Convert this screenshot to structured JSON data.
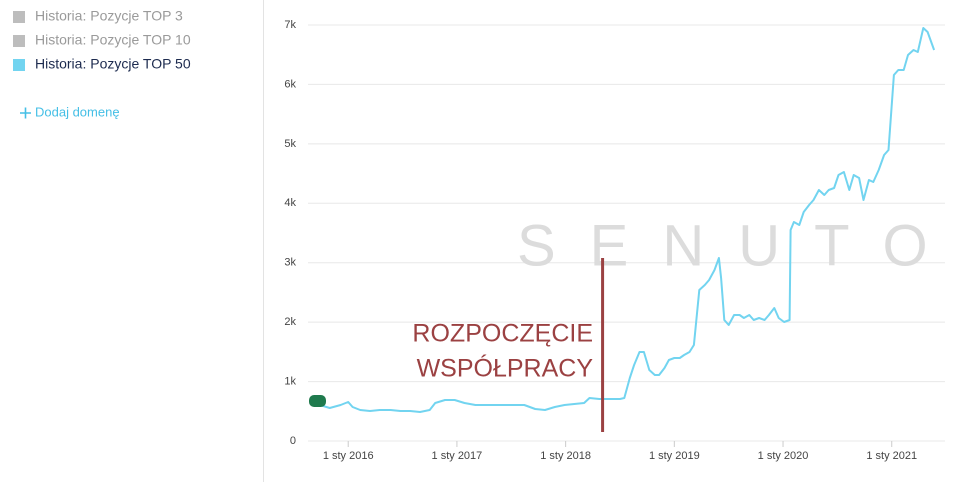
{
  "sidebar": {
    "legend": [
      {
        "name": "Historia: Pozycje TOP 3",
        "color": "#bdbdbd"
      },
      {
        "name": "Historia: Pozycje TOP 10",
        "color": "#bdbdbd"
      }
    ],
    "add_domain": "Dodaj domenę"
  },
  "chart_data": {
    "type": "line",
    "watermark": "SENUTO",
    "annotation": {
      "lines": [
        "ROZPOCZĘCIE",
        "WSPÓŁPRACY"
      ],
      "x": 2018.34,
      "color": "#9b4142"
    },
    "xlim": [
      2015.63,
      2021.49
    ],
    "xticks": [
      {
        "value": 2016,
        "label": "1 sty 2016"
      },
      {
        "value": 2017,
        "label": "1 sty 2017"
      },
      {
        "value": 2018,
        "label": "1 sty 2018"
      },
      {
        "value": 2019,
        "label": "1 sty 2019"
      },
      {
        "value": 2020,
        "label": "1 sty 2020"
      },
      {
        "value": 2021,
        "label": "1 sty 2021"
      }
    ],
    "ylim": [
      0,
      7000
    ],
    "yticks": [
      0,
      {
        "value": 1000,
        "label": "1k"
      },
      {
        "value": 2000,
        "label": "2k"
      },
      {
        "value": 3000,
        "label": "3k"
      },
      {
        "value": 4000,
        "label": "4k"
      },
      {
        "value": 5000,
        "label": "5k"
      },
      {
        "value": 6000,
        "label": "6k"
      },
      {
        "value": 7000,
        "label": "7k"
      }
    ],
    "grid": true,
    "x": [
      2015.65,
      2015.74,
      2015.83,
      2015.93,
      2016.0,
      2016.04,
      2016.11,
      2016.2,
      2016.29,
      2016.39,
      2016.48,
      2016.57,
      2016.66,
      2016.75,
      2016.8,
      2016.89,
      2016.98,
      2017.07,
      2017.17,
      2017.26,
      2017.35,
      2017.44,
      2017.53,
      2017.62,
      2017.72,
      2017.81,
      2017.9,
      2017.99,
      2018.08,
      2018.17,
      2018.22,
      2018.31,
      2018.4,
      2018.5,
      2018.54,
      2018.59,
      2018.63,
      2018.68,
      2018.72,
      2018.77,
      2018.82,
      2018.86,
      2018.91,
      2018.95,
      2019.0,
      2019.05,
      2019.09,
      2019.14,
      2019.18,
      2019.23,
      2019.28,
      2019.32,
      2019.37,
      2019.41,
      2019.43,
      2019.46,
      2019.5,
      2019.55,
      2019.6,
      2019.64,
      2019.69,
      2019.73,
      2019.78,
      2019.83,
      2019.87,
      2019.92,
      2019.96,
      2020.01,
      2020.06,
      2020.07,
      2020.1,
      2020.15,
      2020.19,
      2020.24,
      2020.28,
      2020.33,
      2020.38,
      2020.42,
      2020.47,
      2020.51,
      2020.56,
      2020.61,
      2020.65,
      2020.7,
      2020.74,
      2020.79,
      2020.83,
      2020.88,
      2020.93,
      2020.97,
      2021.02,
      2021.06,
      2021.11,
      2021.15,
      2021.2,
      2021.24,
      2021.29,
      2021.33,
      2021.39
    ],
    "series": [
      {
        "name": "Historia: Pozycje TOP 50",
        "color": "#72d4f0",
        "values": [
          690,
          606,
          555,
          606,
          656,
          572,
          522,
          505,
          522,
          522,
          505,
          505,
          488,
          522,
          640,
          690,
          690,
          640,
          606,
          606,
          606,
          606,
          606,
          606,
          538,
          522,
          572,
          606,
          623,
          640,
          723,
          707,
          707,
          707,
          723,
          1060,
          1279,
          1498,
          1498,
          1195,
          1111,
          1111,
          1228,
          1363,
          1397,
          1397,
          1447,
          1498,
          1615,
          2541,
          2625,
          2709,
          2878,
          3079,
          2743,
          2036,
          1952,
          2120,
          2120,
          2070,
          2120,
          2036,
          2070,
          2036,
          2120,
          2238,
          2070,
          2003,
          2036,
          3551,
          3685,
          3635,
          3853,
          3971,
          4055,
          4224,
          4140,
          4224,
          4257,
          4476,
          4527,
          4224,
          4476,
          4426,
          4055,
          4392,
          4358,
          4560,
          4813,
          4897,
          6159,
          6243,
          6243,
          6495,
          6580,
          6546,
          6950,
          6883,
          6580
        ]
      }
    ]
  }
}
